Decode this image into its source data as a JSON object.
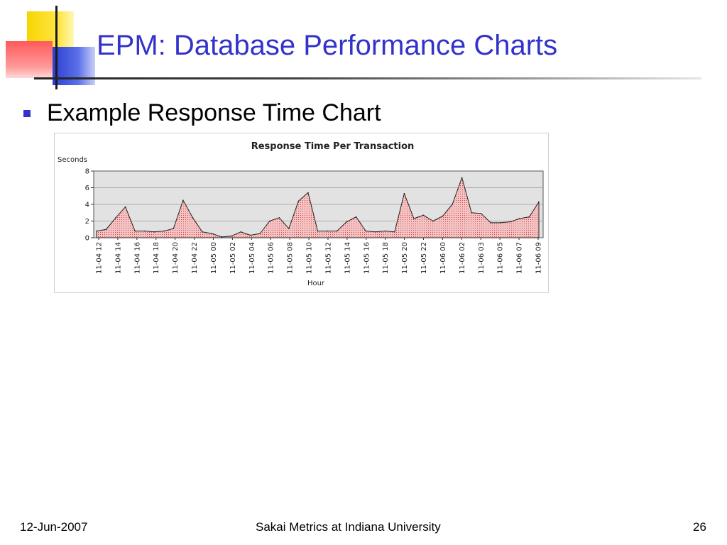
{
  "slide": {
    "title": "EPM: Database Performance Charts",
    "bullet": "Example Response Time Chart"
  },
  "footer": {
    "date": "12-Jun-2007",
    "center": "Sakai Metrics at Indiana University",
    "page": "26"
  },
  "colors": {
    "title": "#3333cc",
    "area_fill": "#f4c3c3",
    "area_dots": "#c62828",
    "plot_bg": "#e2e2e2"
  },
  "chart_data": {
    "type": "area",
    "title": "Response Time Per Transaction",
    "xlabel": "Hour",
    "ylabel": "Seconds",
    "ylim": [
      0,
      8
    ],
    "yticks": [
      0,
      2,
      4,
      6,
      8
    ],
    "grid": true,
    "x_tick_labels": [
      "11-04 12",
      "11-04 14",
      "11-04 16",
      "11-04 18",
      "11-04 20",
      "11-04 22",
      "11-05 00",
      "11-05 02",
      "11-05 04",
      "11-05 06",
      "11-05 08",
      "11-05 10",
      "11-05 12",
      "11-05 14",
      "11-05 16",
      "11-05 18",
      "11-05 20",
      "11-05 22",
      "11-06 00",
      "11-06 02",
      "11-06 03",
      "11-06 05",
      "11-06 07",
      "11-06 09"
    ],
    "series": [
      {
        "values": [
          0.8,
          1.0,
          2.4,
          3.7,
          0.8,
          0.8,
          0.7,
          0.8,
          1.1,
          4.5,
          2.4,
          0.7,
          0.5,
          0.1,
          0.2,
          0.7,
          0.3,
          0.5,
          2.0,
          2.4,
          1.1,
          4.4,
          5.4,
          0.8,
          0.8,
          0.8,
          1.9,
          2.5,
          0.8,
          0.7,
          0.8,
          0.7,
          5.3,
          2.3,
          2.7,
          2.0,
          2.6,
          4.0,
          7.2,
          3.0,
          2.9,
          1.8,
          1.8,
          1.9,
          2.3,
          2.5,
          4.3
        ]
      }
    ]
  }
}
